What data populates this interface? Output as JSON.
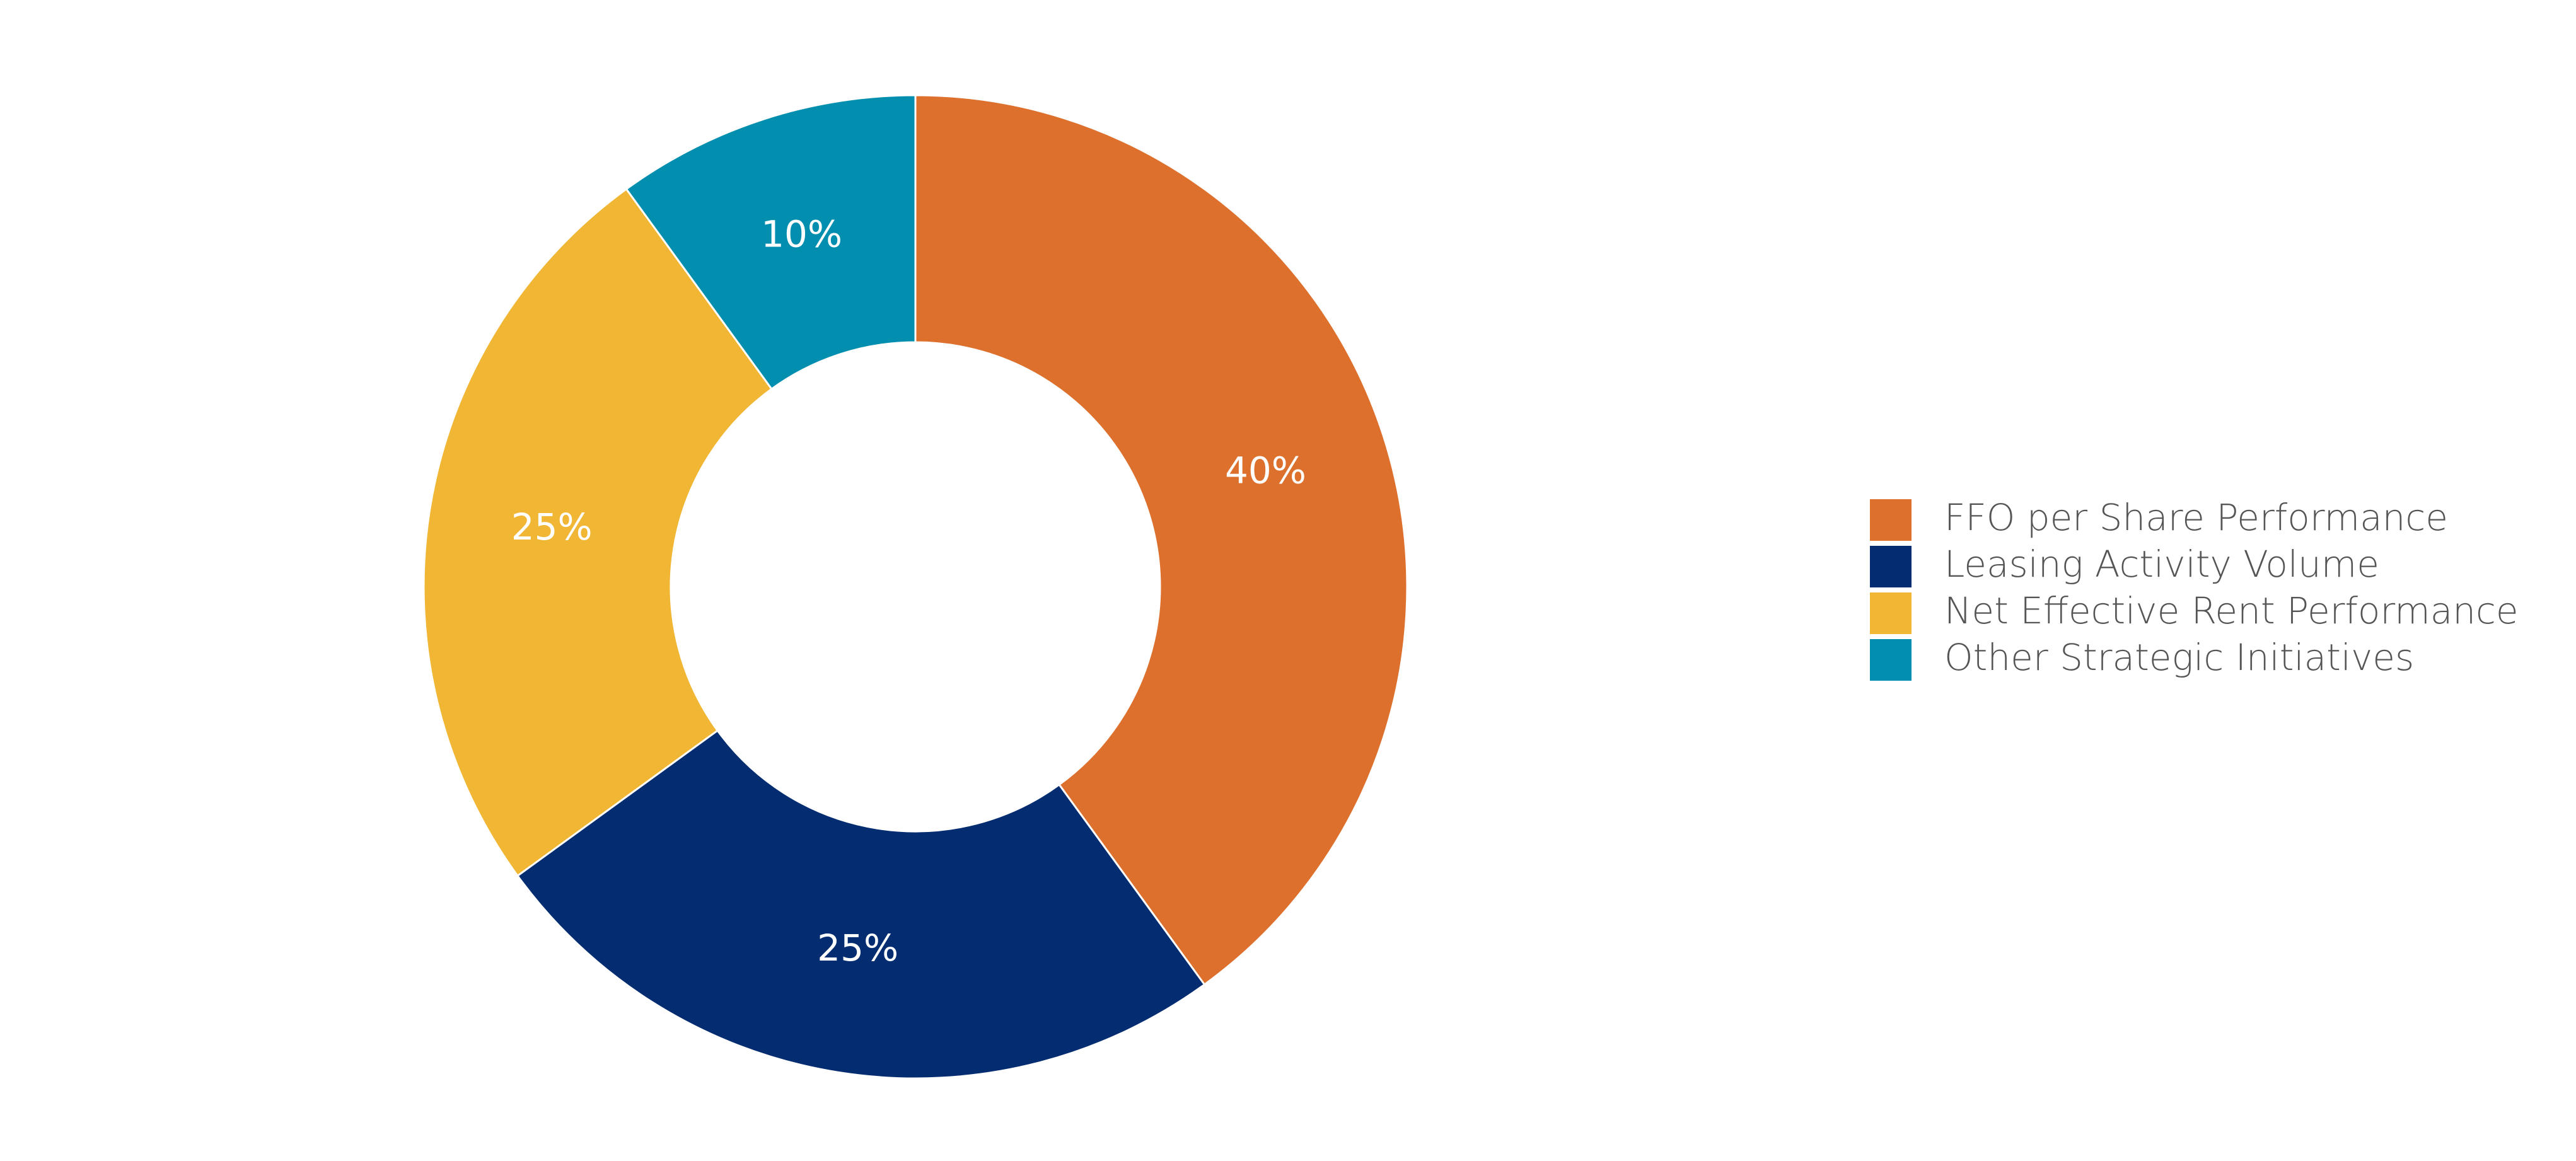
{
  "chart_data": {
    "type": "pie",
    "donut": true,
    "categories": [
      "FFO per Share Performance",
      "Leasing Activity Volume",
      "Net Effective Rent Performance",
      "Other Strategic Initiatives"
    ],
    "values": [
      40,
      25,
      25,
      10
    ],
    "value_labels": [
      "40%",
      "25%",
      "25%",
      "10%"
    ],
    "colors": [
      "#dd702d",
      "#032c71",
      "#f0b634",
      "#028faf"
    ],
    "legend": "right"
  }
}
